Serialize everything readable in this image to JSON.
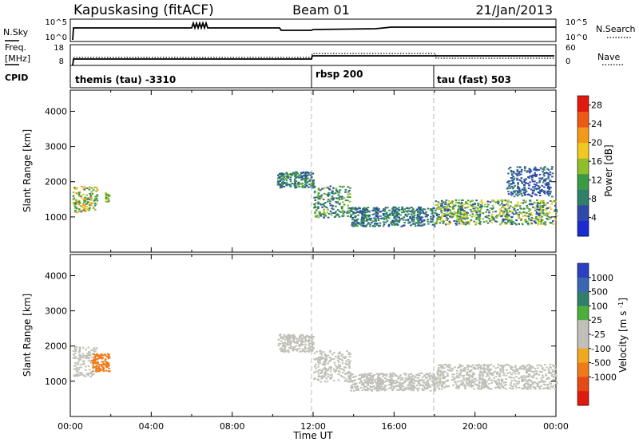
{
  "header": {
    "station": "Kapuskasing (fitACF)",
    "beam": "Beam 01",
    "date": "21/Jan/2013"
  },
  "noise_panel": {
    "left_label": "N.Sky",
    "right_label": "N.Search",
    "left_ticks": [
      "10^5",
      "10^0"
    ],
    "right_ticks": [
      "10^5",
      "10^0"
    ]
  },
  "freq_panel": {
    "left_label_line1": "Freq.",
    "left_label_line2": "[MHz]",
    "right_label": "Nave",
    "left_ticks": [
      "18",
      "8"
    ],
    "right_ticks": [
      "60",
      "0"
    ]
  },
  "cpid": {
    "label": "CPID",
    "segments": [
      {
        "name": "themis (tau) -3310",
        "start_hour": 0
      },
      {
        "name": "rbsp 200",
        "start_hour": 12
      },
      {
        "name": "tau (fast) 503",
        "start_hour": 18
      }
    ]
  },
  "colors": {
    "power": [
      "#1a2bd0",
      "#2f49a8",
      "#2f7f6a",
      "#3a9a44",
      "#8fbf2a",
      "#f0c81e",
      "#f39a1c",
      "#ec5a16",
      "#e21a0e"
    ],
    "velocity": [
      "#2a40c0",
      "#3a66b5",
      "#2f7f6a",
      "#4cae3c",
      "#c0c0b8",
      "#c0c0b8",
      "#f2a81e",
      "#f07a18",
      "#e64a14",
      "#e01a10"
    ]
  },
  "chart_data": [
    {
      "type": "heatmap",
      "title": "Power",
      "ylabel": "Slant Range [km]",
      "xlabel": "",
      "ylim": [
        0,
        4600
      ],
      "xlim_hours": [
        0,
        24
      ],
      "yticks": [
        "1000",
        "2000",
        "3000",
        "4000"
      ],
      "colorbar_label": "Power [dB]",
      "colorbar_ticks": [
        "4",
        "8",
        "12",
        "16",
        "20",
        "24",
        "28"
      ],
      "colorbar_range": [
        0,
        30
      ],
      "markers_hours": [
        12,
        18
      ],
      "scatter_bands": [
        {
          "hour_start": 0.1,
          "hour_end": 1.3,
          "range_low": 1150,
          "range_high": 1900,
          "value_low": 8,
          "value_high": 24
        },
        {
          "hour_start": 1.7,
          "hour_end": 1.9,
          "range_low": 1450,
          "range_high": 1700,
          "value_low": 10,
          "value_high": 18
        },
        {
          "hour_start": 10.2,
          "hour_end": 12.0,
          "range_low": 1850,
          "range_high": 2300,
          "value_low": 4,
          "value_high": 14
        },
        {
          "hour_start": 12.0,
          "hour_end": 13.8,
          "range_low": 1000,
          "range_high": 1900,
          "value_low": 4,
          "value_high": 16
        },
        {
          "hour_start": 13.8,
          "hour_end": 18.0,
          "range_low": 750,
          "range_high": 1300,
          "value_low": 4,
          "value_high": 12
        },
        {
          "hour_start": 18.0,
          "hour_end": 24.0,
          "range_low": 800,
          "range_high": 1500,
          "value_low": 4,
          "value_high": 20
        },
        {
          "hour_start": 21.5,
          "hour_end": 23.8,
          "range_low": 1600,
          "range_high": 2450,
          "value_low": 4,
          "value_high": 8
        }
      ]
    },
    {
      "type": "heatmap",
      "title": "Velocity",
      "ylabel": "Slant Range [km]",
      "xlabel": "Time UT",
      "ylim": [
        0,
        4600
      ],
      "xlim_hours": [
        0,
        24
      ],
      "yticks": [
        "1000",
        "2000",
        "3000",
        "4000"
      ],
      "xticks": [
        "00:00",
        "04:00",
        "08:00",
        "12:00",
        "16:00",
        "20:00",
        "00:00"
      ],
      "colorbar_label": "Velocity [m s^-1]",
      "colorbar_ticks": [
        "1000",
        "500",
        "100",
        "25",
        "-25",
        "-100",
        "-500",
        "-1000"
      ],
      "markers_hours": [
        12,
        18
      ],
      "scatter_bands": [
        {
          "hour_start": 0.1,
          "hour_end": 1.3,
          "range_low": 1150,
          "range_high": 2000,
          "value_low": -25,
          "value_high": 25
        },
        {
          "hour_start": 1.0,
          "hour_end": 1.9,
          "range_low": 1300,
          "range_high": 1800,
          "value_low": -500,
          "value_high": -100
        },
        {
          "hour_start": 10.2,
          "hour_end": 12.0,
          "range_low": 1850,
          "range_high": 2350,
          "value_low": -25,
          "value_high": 25
        },
        {
          "hour_start": 12.0,
          "hour_end": 13.8,
          "range_low": 1000,
          "range_high": 1900,
          "value_low": -25,
          "value_high": 25
        },
        {
          "hour_start": 13.8,
          "hour_end": 18.0,
          "range_low": 750,
          "range_high": 1250,
          "value_low": -25,
          "value_high": 25
        },
        {
          "hour_start": 18.0,
          "hour_end": 24.0,
          "range_low": 800,
          "range_high": 1500,
          "value_low": -25,
          "value_high": 25
        }
      ]
    }
  ]
}
